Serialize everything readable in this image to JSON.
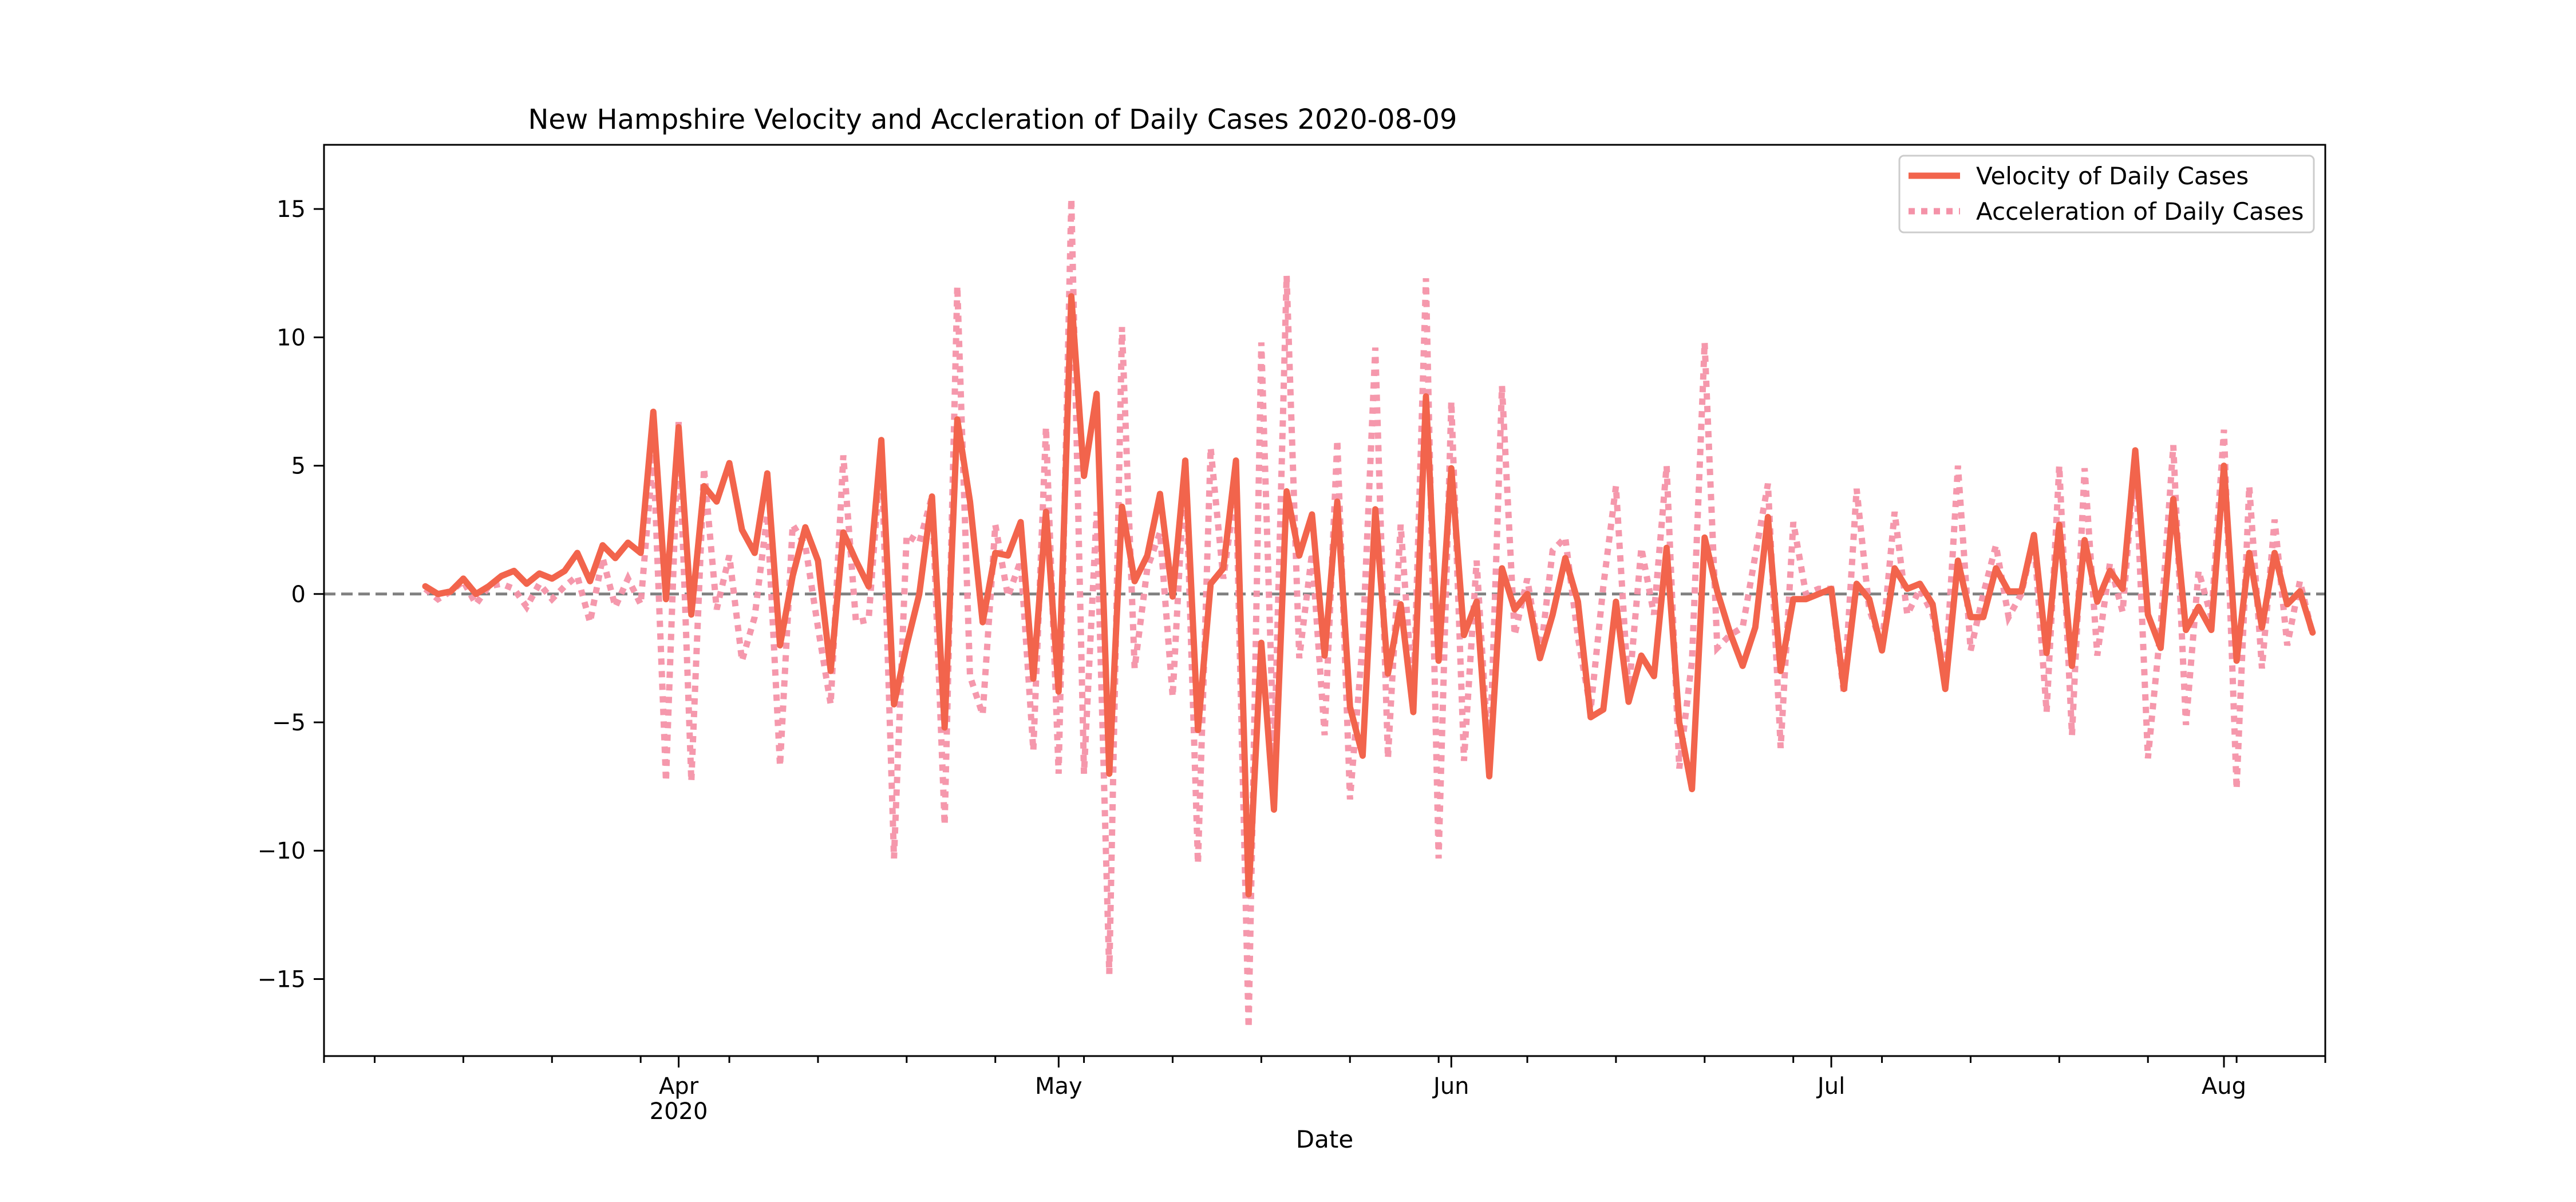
{
  "chart_data": {
    "type": "line",
    "title": "New Hampshire Velocity and Accleration of Daily Cases 2020-08-09",
    "xlabel": "Date",
    "ylabel": "",
    "x_start": "2020-03-12",
    "xlim": [
      "2020-03-04",
      "2020-08-09"
    ],
    "ylim": [
      -18,
      17.5
    ],
    "x_ticks": [
      {
        "date": "2020-04-01",
        "label": "Apr",
        "sublabel": "2020"
      },
      {
        "date": "2020-05-01",
        "label": "May",
        "sublabel": ""
      },
      {
        "date": "2020-06-01",
        "label": "Jun",
        "sublabel": ""
      },
      {
        "date": "2020-07-01",
        "label": "Jul",
        "sublabel": ""
      },
      {
        "date": "2020-08-01",
        "label": "Aug",
        "sublabel": ""
      }
    ],
    "y_ticks": [
      {
        "value": 15,
        "label": "15"
      },
      {
        "value": 10,
        "label": "10"
      },
      {
        "value": 5,
        "label": "5"
      },
      {
        "value": 0,
        "label": "0"
      },
      {
        "value": -5,
        "label": "−5"
      },
      {
        "value": -10,
        "label": "−10"
      },
      {
        "value": -15,
        "label": "−15"
      }
    ],
    "grid": false,
    "reference_line": {
      "y": 0,
      "style": "dashed",
      "color": "#808080"
    },
    "legend": {
      "position": "top-right"
    },
    "series": [
      {
        "name": "Velocity of Daily Cases",
        "color": "#f2644c",
        "style": "solid",
        "values": [
          0.3,
          0.0,
          0.1,
          0.6,
          0.0,
          0.3,
          0.7,
          0.9,
          0.4,
          0.8,
          0.6,
          0.9,
          1.6,
          0.5,
          1.9,
          1.4,
          2.0,
          1.6,
          7.1,
          -0.2,
          6.5,
          -0.8,
          4.2,
          3.6,
          5.1,
          2.5,
          1.6,
          4.7,
          -2.0,
          0.7,
          2.6,
          1.3,
          -3.0,
          2.4,
          1.3,
          0.3,
          6.0,
          -4.3,
          -2.0,
          0.0,
          3.8,
          -5.2,
          6.8,
          3.6,
          -1.1,
          1.6,
          1.5,
          2.8,
          -3.3,
          3.2,
          -3.8,
          11.6,
          4.6,
          7.8,
          -7.0,
          3.4,
          0.5,
          1.5,
          3.9,
          -0.1,
          5.2,
          -5.3,
          0.4,
          1.0,
          5.2,
          -11.7,
          -1.9,
          -8.4,
          4.0,
          1.5,
          3.1,
          -2.4,
          3.6,
          -4.4,
          -6.3,
          3.3,
          -3.1,
          -0.4,
          -4.6,
          7.7,
          -2.6,
          4.9,
          -1.6,
          -0.3,
          -7.1,
          1.0,
          -0.6,
          0.0,
          -2.5,
          -0.8,
          1.4,
          -0.3,
          -4.8,
          -4.5,
          -0.3,
          -4.2,
          -2.4,
          -3.2,
          1.8,
          -5.0,
          -7.6,
          2.2,
          0.1,
          -1.5,
          -2.8,
          -1.3,
          3.0,
          -3.0,
          -0.2,
          -0.2,
          0.0,
          0.2,
          -3.7,
          0.4,
          -0.2,
          -2.2,
          1.0,
          0.2,
          0.4,
          -0.4,
          -3.7,
          1.3,
          -0.9,
          -0.9,
          1.0,
          0.1,
          0.1,
          2.3,
          -2.3,
          2.7,
          -2.8,
          2.1,
          -0.3,
          0.9,
          0.2,
          5.6,
          -0.8,
          -2.1,
          3.7,
          -1.4,
          -0.5,
          -1.4,
          5.0,
          -2.6,
          1.6,
          -1.3,
          1.6,
          -0.4,
          0.1,
          -1.5
        ]
      },
      {
        "name": "Acceleration of Daily Cases",
        "color": "#f492a8",
        "style": "dotted",
        "values": [
          0.2,
          -0.2,
          0.1,
          0.5,
          -0.4,
          0.3,
          0.4,
          0.2,
          -0.5,
          0.4,
          -0.2,
          0.3,
          0.7,
          -1.1,
          1.4,
          -0.5,
          0.6,
          -0.4,
          5.5,
          -7.3,
          6.7,
          -7.3,
          4.9,
          -0.6,
          1.5,
          -2.6,
          -0.9,
          3.1,
          -6.7,
          2.7,
          1.9,
          -1.3,
          -4.3,
          5.4,
          -1.1,
          -1.0,
          5.7,
          -10.3,
          2.3,
          2.0,
          3.8,
          -9.0,
          12.0,
          -3.2,
          -4.7,
          2.7,
          -0.1,
          1.3,
          -6.1,
          6.5,
          -7.0,
          15.4,
          -7.0,
          3.2,
          -14.8,
          10.4,
          -2.9,
          1.0,
          2.4,
          -4.0,
          5.3,
          -10.5,
          5.7,
          0.6,
          4.2,
          -16.9,
          9.8,
          -6.5,
          12.4,
          -2.5,
          1.6,
          -5.5,
          6.0,
          -8.0,
          -1.9,
          9.6,
          -6.4,
          2.7,
          -4.2,
          12.3,
          -10.3,
          7.5,
          -6.5,
          1.3,
          -6.8,
          8.1,
          -1.6,
          0.6,
          -2.5,
          1.7,
          2.2,
          -1.7,
          -4.5,
          0.3,
          4.2,
          -3.9,
          1.8,
          -0.8,
          5.0,
          -6.8,
          -2.6,
          9.8,
          -2.1,
          -1.6,
          -1.3,
          1.5,
          4.3,
          -6.0,
          2.8,
          0.0,
          0.2,
          0.2,
          -3.9,
          4.1,
          -0.6,
          -2.0,
          3.2,
          -0.8,
          0.2,
          -0.8,
          -3.3,
          5.0,
          -2.2,
          0.0,
          1.9,
          -0.9,
          0.0,
          2.2,
          -4.6,
          5.0,
          -5.5,
          4.9,
          -2.4,
          1.2,
          -0.7,
          5.4,
          -6.4,
          -1.3,
          5.8,
          -5.1,
          0.9,
          -0.9,
          6.4,
          -7.6,
          4.2,
          -2.9,
          2.9,
          -2.0,
          0.5,
          -1.6
        ]
      }
    ]
  }
}
